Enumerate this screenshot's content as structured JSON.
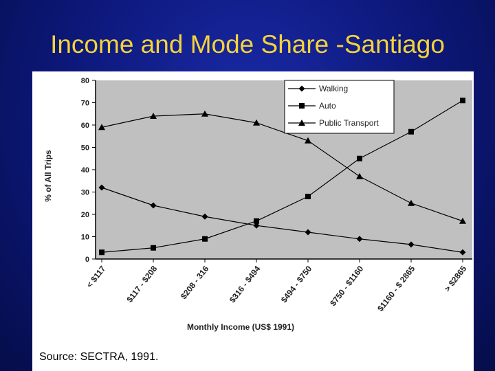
{
  "slide": {
    "title": "Income and Mode Share -Santiago",
    "source": "Source: SECTRA, 1991."
  },
  "chart_data": {
    "type": "line",
    "categories": [
      "< $117",
      "$117 - $208",
      "$208 - 316",
      "$316 - $494",
      "$494 - $750",
      "$750 - $1160",
      "$1160 - $ 2865",
      "> $2865"
    ],
    "series": [
      {
        "name": "Walking",
        "marker": "diamond",
        "values": [
          32,
          24,
          19,
          15,
          12,
          9,
          6.5,
          3
        ]
      },
      {
        "name": "Auto",
        "marker": "square",
        "values": [
          3,
          5,
          9,
          17,
          28,
          45,
          57,
          71
        ]
      },
      {
        "name": "Public Transport",
        "marker": "triangle",
        "values": [
          59,
          64,
          65,
          61,
          53,
          37,
          25,
          17
        ]
      }
    ],
    "xlabel": "Monthly Income (US$ 1991)",
    "ylabel": "% of All Trips",
    "ylim": [
      0,
      80
    ],
    "yticks": [
      0,
      10,
      20,
      30,
      40,
      50,
      60,
      70,
      80
    ],
    "grid": false,
    "legend_position": "top-right",
    "plot_background": "#c0c0c0",
    "line_color": "#000000"
  }
}
